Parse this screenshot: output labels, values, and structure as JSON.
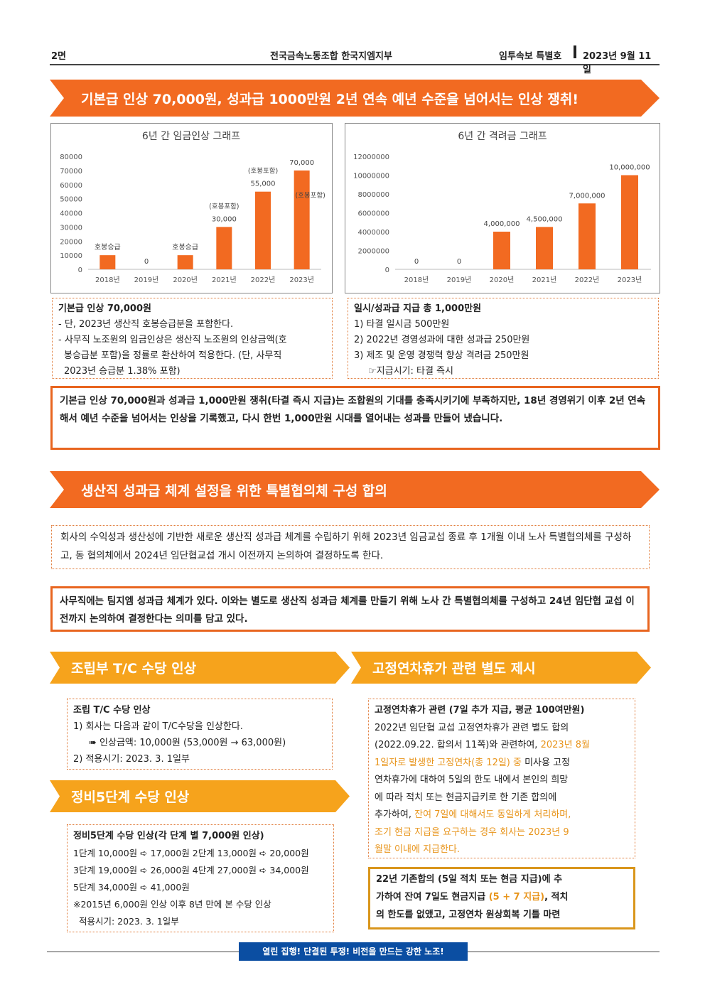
{
  "header": {
    "page": "2면",
    "org": "전국금속노동조합 한국지엠지부",
    "edition": "임투속보 특별호",
    "date": "2023년 9월 11일"
  },
  "banner1": "기본급 인상 70,000원, 성과급 1000만원 2년 연속 예년 수준을 넘어서는 인상 쟁취!",
  "chart_data": [
    {
      "type": "bar",
      "title": "6년 간 임금인상 그래프",
      "categories": [
        "2018년",
        "2019년",
        "2020년",
        "2021년",
        "2022년",
        "2023년"
      ],
      "values": [
        10000,
        0,
        10000,
        30000,
        55000,
        70000
      ],
      "data_labels": [
        "호봉승급",
        "0",
        "호봉승급",
        "30,000",
        "55,000",
        "70,000"
      ],
      "sub_labels": [
        "",
        "",
        "",
        "(호봉포함)",
        "(호봉포함)",
        "(호봉포함)"
      ],
      "yticks": [
        "0",
        "10000",
        "20000",
        "30000",
        "40000",
        "50000",
        "60000",
        "70000",
        "80000"
      ],
      "ylim": [
        0,
        80000
      ],
      "color": "#f26a21"
    },
    {
      "type": "bar",
      "title": "6년 간 격려금 그래프",
      "categories": [
        "2018년",
        "2019년",
        "2020년",
        "2021년",
        "2022년",
        "2023년"
      ],
      "values": [
        0,
        0,
        4000000,
        4500000,
        7000000,
        10000000
      ],
      "data_labels": [
        "0",
        "0",
        "4,000,000",
        "4,500,000",
        "7,000,000",
        "10,000,000"
      ],
      "yticks": [
        "0",
        "2000000",
        "4000000",
        "6000000",
        "8000000",
        "10000000",
        "12000000"
      ],
      "ylim": [
        0,
        12000000
      ],
      "color": "#f26a21"
    }
  ],
  "box_base": {
    "title": "기본급 인상 70,000원",
    "lines": [
      "- 단, 2023년 생산직 호봉승급분을 포함한다.",
      "- 사무직 노조원의 임금인상은 생산직 노조원의 인상금액(호",
      "  봉승급분 포함)을 정률로 환산하여 적용한다. (단, 사무직",
      "  2023년 승급분 1.38% 포함)"
    ]
  },
  "box_bonus": {
    "title": "일시/성과급 지급 총 1,000만원",
    "lines": [
      "1) 타결 일시금 500만원",
      "2) 2022년 경영성과에 대한 성과급 250만원",
      "3) 제조 및 운영 경쟁력 향상 격려금 250만원",
      "☞지급시기: 타결 즉시"
    ]
  },
  "summary1": "기본급 인상 70,000원과 성과급 1,000만원 쟁취(타결 즉시 지급)는 조합원의 기대를 충족시키기에 부족하지만, 18년 경영위기 이후 2년 연속해서 예년 수준을 넘어서는 인상을 기록했고, 다시 한번 1,000만원 시대를 열어내는 성과를 만들어 냈습니다.",
  "banner2": "생산직 성과급 체계 설정을 위한 특별협의체 구성 합의",
  "text2": "회사의 수익성과 생산성에 기반한 새로운 생산직 성과급 체계를 수립하기 위해 2023년 임금교섭 종료 후 1개월 이내 노사 특별협의체를 구성하고, 동 협의체에서 2024년 임단협교섭 개시 이전까지 논의하여 결정하도록 한다.",
  "summary2": "사무직에는 팀지엠 성과급 체계가 있다. 이와는 별도로 생산직 성과급 체계를 만들기 위해 노사 간 특별협의체를 구성하고 24년 임단협 교섭 이전까지 논의하여 결정한다는 의미를 담고 있다.",
  "banner3": "조립부 T/C 수당 인상",
  "banner4": "고정연차휴가 관련 별도 제시",
  "banner5": "정비5단계 수당 인상",
  "box_tc": {
    "title": "조립 T/C 수당 인상",
    "lines": [
      "1) 회사는 다음과 같이 T/C수당을 인상한다.",
      "➠ 인상금액: 10,000원 (53,000원 → 63,000원)",
      "2) 적용시기: 2023. 3. 1일부"
    ]
  },
  "box_maint": {
    "title": "정비5단계 수당 인상(각 단계 별 7,000원 인상)",
    "lines": [
      "1단계 10,000원 ➪ 17,000원 2단계 13,000원 ➪ 20,000원",
      "3단계 19,000원 ➪ 26,000원 4단계 27,000원 ➪ 34,000원",
      "5단계 34,000원 ➪ 41,000원",
      "※2015년 6,000원 인상 이후 8년 만에 본 수당 인상",
      "  적용시기: 2023. 3. 1일부"
    ]
  },
  "box_leave": {
    "title": "고정연차휴가 관련 (7일 추가 지급, 평균 100여만원)",
    "lines": [
      {
        "t": "2022년 임단협 교섭 고정연차휴가 관련 별도 합의",
        "h": ""
      },
      {
        "t": "(2022.09.22. 합의서 11쪽)와 관련하여, ",
        "h": "2023년 8월"
      },
      {
        "t": "",
        "h": "1일자로 발생한 고정연차(총 12일) 중",
        "t2": " 미사용 고정"
      },
      {
        "t": "연차휴가에 대하여 5일의 한도 내에서 본인의 희망",
        "h": ""
      },
      {
        "t": "에 따라 적치 또는 현금지급키로 한 기존 합의에",
        "h": ""
      },
      {
        "t": "추가하여, ",
        "h": "잔여 7일에 대해서도 동일하게 처리하며,"
      },
      {
        "t": "",
        "h": "조기 현금 지급을 요구하는 경우 회사는 2023년 9"
      },
      {
        "t": "",
        "h": "월말 이내에 지급한다."
      }
    ]
  },
  "summary3": [
    "22년 기존합의 (5일 적치 또는 현금 지급)에 추",
    "가하여 잔여 7일도 현금지급 ",
    "(5 + 7 지급)",
    ", 적치",
    "의 한도를 없앴고, 고정연차 원상회복 기틀 마련"
  ],
  "footer": "열린 집행! 단결된 투쟁! 비전을 만드는 강한 노조!"
}
